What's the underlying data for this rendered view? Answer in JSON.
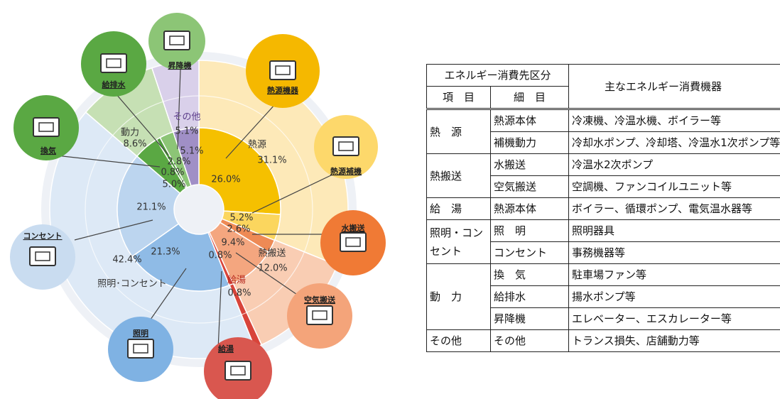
{
  "chart_data": {
    "type": "sunburst",
    "groups": [
      {
        "name": "熱源",
        "value": 31.1,
        "value_label": "31.1%",
        "color": "#fde9b8",
        "children": [
          {
            "name": "熱源機器",
            "value": 26.0,
            "value_label": "26.0%",
            "color": "#f5c000"
          },
          {
            "name": "熱源補機",
            "value": 5.2,
            "value_label": "5.2%",
            "color": "#fbd65e"
          }
        ]
      },
      {
        "name": "熱搬送",
        "value": 12.0,
        "value_label": "12.0%",
        "color": "#f9cdb3",
        "children": [
          {
            "name": "水搬送",
            "value": 2.6,
            "value_label": "2.6%",
            "color": "#ee8a55"
          },
          {
            "name": "空気搬送",
            "value": 9.4,
            "value_label": "9.4%",
            "color": "#f4a67f"
          }
        ]
      },
      {
        "name": "給湯",
        "value": 0.8,
        "value_label": "0.8%",
        "color": "#d8443a",
        "children": [
          {
            "name": "給湯",
            "value": 0.8,
            "value_label": "0.8%",
            "color": "#d8443a"
          }
        ]
      },
      {
        "name": "照明･コンセント",
        "value": 42.4,
        "value_label": "42.4%",
        "color": "#dde9f6",
        "children": [
          {
            "name": "照明",
            "value": 21.3,
            "value_label": "21.3%",
            "color": "#8fbbe6"
          },
          {
            "name": "コンセント",
            "value": 21.1,
            "value_label": "21.1%",
            "color": "#bcd5ef"
          }
        ]
      },
      {
        "name": "動力",
        "value": 8.6,
        "value_label": "8.6%",
        "color": "#c6e0b4",
        "children": [
          {
            "name": "換気",
            "value": 5.0,
            "value_label": "5.0%",
            "color": "#5aa843"
          },
          {
            "name": "給排水",
            "value": 0.8,
            "value_label": "0.8%",
            "color": "#4e9a3a"
          },
          {
            "name": "昇降機",
            "value": 2.8,
            "value_label": "2.8%",
            "color": "#8cc576"
          }
        ]
      },
      {
        "name": "その他",
        "value": 5.1,
        "value_label": "5.1%",
        "color": "#d9d0ea",
        "children": [
          {
            "name": null,
            "value": 5.1,
            "value_label": "5.1%",
            "color": "#a08fc6"
          }
        ]
      }
    ]
  },
  "table": {
    "header": {
      "category": "エネルギー消費先区分",
      "item": "項　目",
      "sub_item": "細　目",
      "equipment": "主なエネルギー消費機器"
    },
    "groups": [
      {
        "item": "熱　源",
        "rows": [
          {
            "sub_item": "熱源本体",
            "equipment": "冷凍機、冷温水機、ボイラー等"
          },
          {
            "sub_item": "補機動力",
            "equipment": "冷却水ポンプ、冷却塔、冷温水1次ポンプ等"
          }
        ]
      },
      {
        "item": "熱搬送",
        "rows": [
          {
            "sub_item": "水搬送",
            "equipment": "冷温水2次ポンプ"
          },
          {
            "sub_item": "空気搬送",
            "equipment": "空調機、ファンコイルユニット等"
          }
        ]
      },
      {
        "item": "給　湯",
        "rows": [
          {
            "sub_item": "熱源本体",
            "equipment": "ボイラー、循環ポンプ、電気温水器等"
          }
        ]
      },
      {
        "item": "照明・コンセント",
        "rows": [
          {
            "sub_item": "照　明",
            "equipment": "照明器具"
          },
          {
            "sub_item": "コンセント",
            "equipment": "事務機器等"
          }
        ]
      },
      {
        "item": "動　力",
        "rows": [
          {
            "sub_item": "換　気",
            "equipment": "駐車場ファン等"
          },
          {
            "sub_item": "給排水",
            "equipment": "揚水ポンプ等"
          },
          {
            "sub_item": "昇降機",
            "equipment": "エレベーター、エスカレーター等"
          }
        ]
      },
      {
        "item": "その他",
        "rows": [
          {
            "sub_item": "その他",
            "equipment": "トランス損失、店舗動力等"
          }
        ]
      }
    ]
  }
}
